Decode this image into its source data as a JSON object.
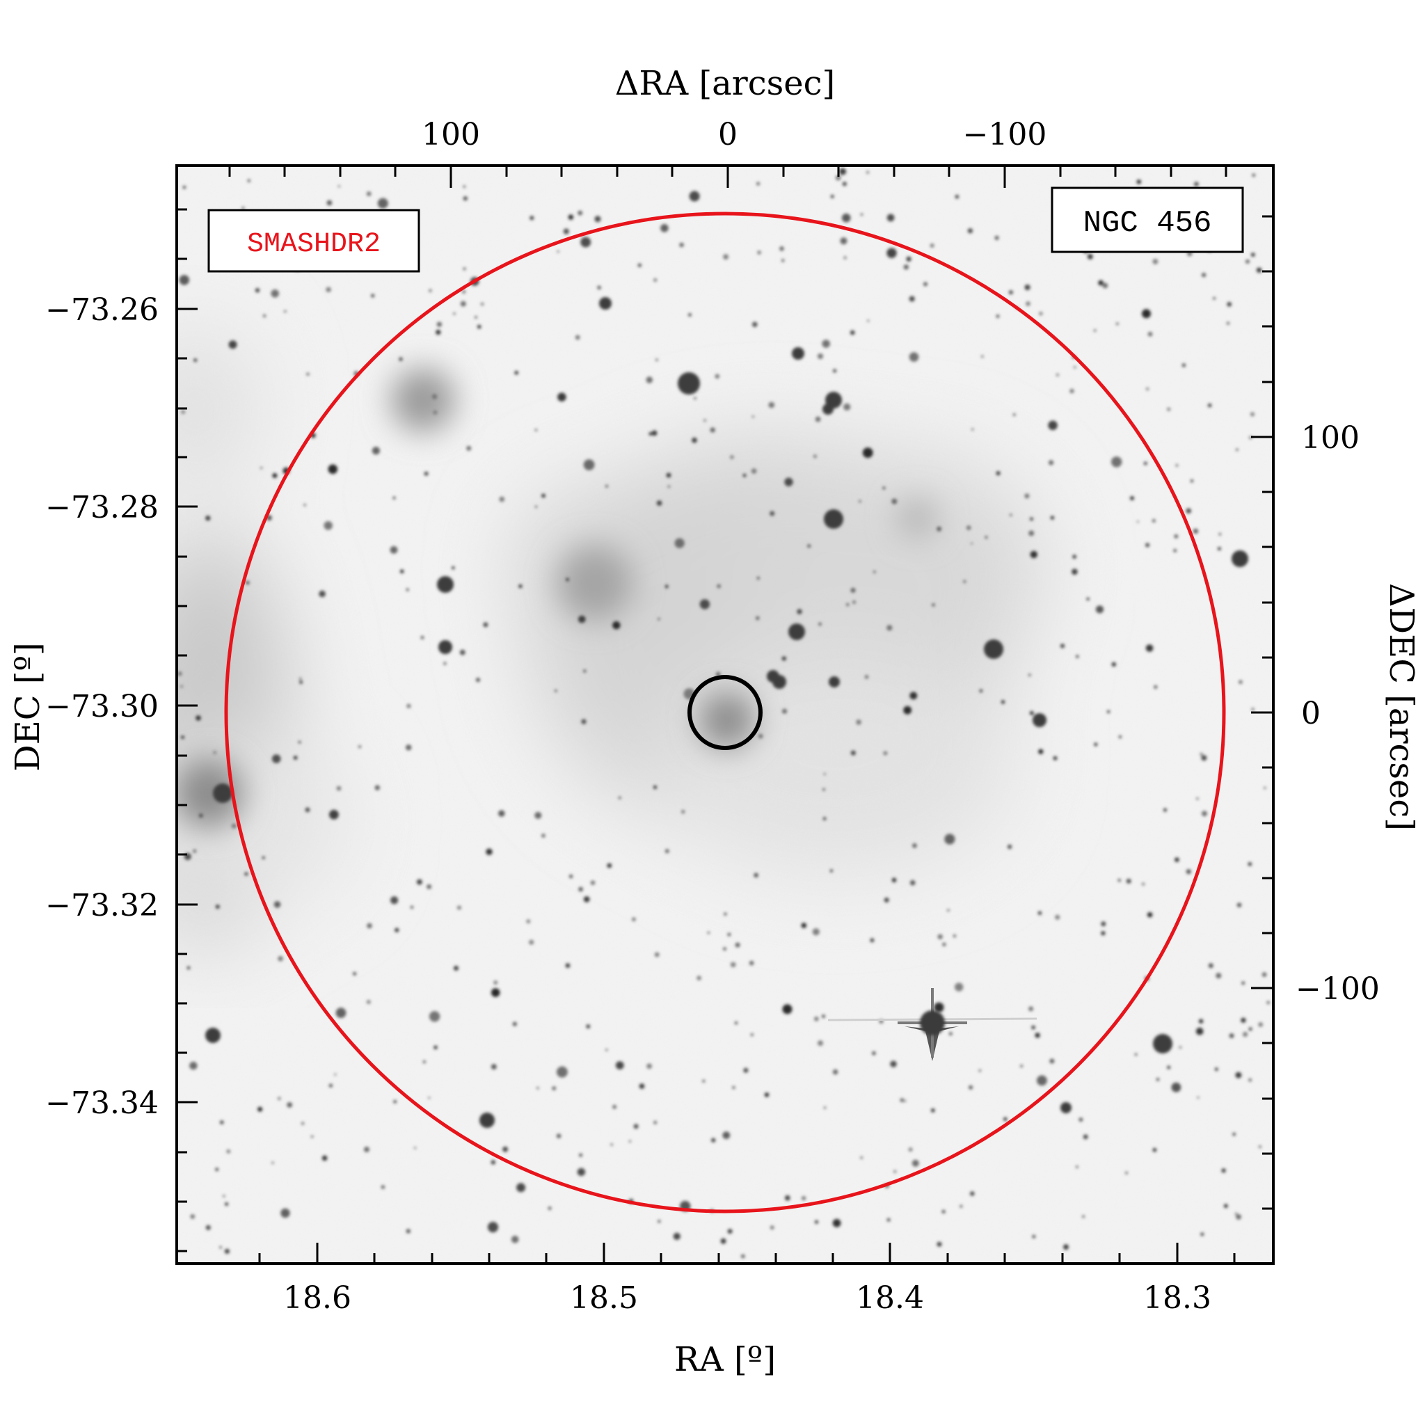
{
  "image": {
    "survey_label": "SMASHDR2",
    "object_label": "NGC 456",
    "survey_label_color": "#e8141b",
    "aperture_color": "#e8141b",
    "center_marker_color": "#000000"
  },
  "axes": {
    "bottom": {
      "label": "RA [º]",
      "ticks": [
        "18.6",
        "18.5",
        "18.4",
        "18.3"
      ]
    },
    "top": {
      "label": "ΔRA [arcsec]",
      "ticks": [
        "100",
        "0",
        "−100"
      ]
    },
    "left": {
      "label": "DEC [º]",
      "ticks": [
        "−73.26",
        "−73.28",
        "−73.30",
        "−73.32",
        "−73.34"
      ]
    },
    "right": {
      "label": "ΔDEC [arcsec]",
      "ticks": [
        "100",
        "0",
        "−100"
      ]
    }
  }
}
